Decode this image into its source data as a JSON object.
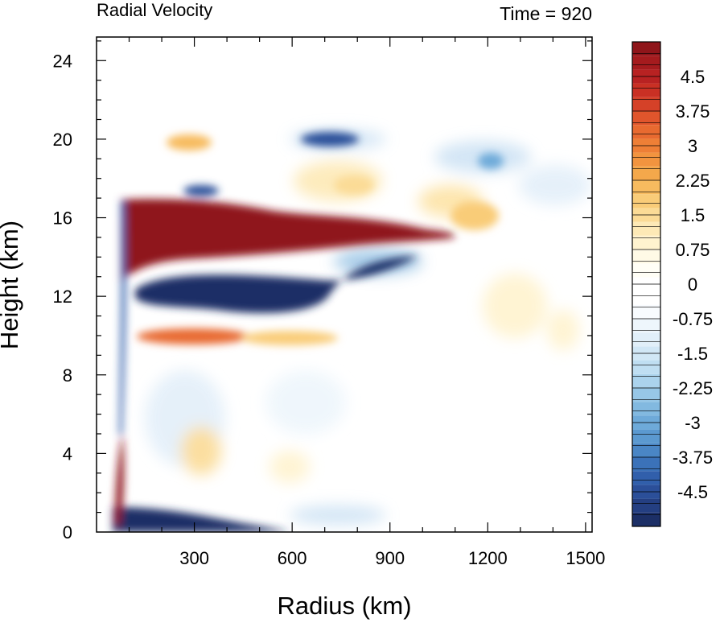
{
  "chart_data": {
    "type": "heatmap",
    "title_left": "Radial Velocity",
    "title_right": "Time = 920",
    "xlabel": "Radius (km)",
    "ylabel": "Height (km)",
    "xlim": [
      0,
      1520
    ],
    "ylim": [
      0,
      25.2
    ],
    "x_ticks": [
      300,
      600,
      900,
      1200,
      1500
    ],
    "y_ticks": [
      0,
      4,
      8,
      12,
      16,
      20,
      24
    ],
    "x_tick_labels": [
      "300",
      "600",
      "900",
      "1200",
      "1500"
    ],
    "y_tick_labels": [
      "0",
      "4",
      "8",
      "12",
      "16",
      "20",
      "24"
    ],
    "colorbar": {
      "levels": [
        -5.25,
        -5.0,
        -4.75,
        -4.5,
        -4.25,
        -4.0,
        -3.75,
        -3.5,
        -3.25,
        -3.0,
        -2.75,
        -2.5,
        -2.25,
        -2.0,
        -1.75,
        -1.5,
        -1.25,
        -1.0,
        -0.75,
        -0.5,
        -0.25,
        0.0,
        0.25,
        0.5,
        0.75,
        1.0,
        1.25,
        1.5,
        1.75,
        2.0,
        2.25,
        2.5,
        2.75,
        3.0,
        3.25,
        3.5,
        3.75,
        4.0,
        4.25,
        4.5,
        4.75,
        5.0,
        5.25
      ],
      "labels": [
        "4.5",
        "3.75",
        "3",
        "2.25",
        "1.5",
        "0.75",
        "0",
        "-0.75",
        "-1.5",
        "-2.25",
        "-3",
        "-3.75",
        "-4.5"
      ],
      "label_values": [
        4.5,
        3.75,
        3.0,
        2.25,
        1.5,
        0.75,
        0,
        -0.75,
        -1.5,
        -2.25,
        -3.0,
        -3.75,
        -4.5
      ],
      "colors": [
        "#1c2f66",
        "#243f82",
        "#2b4f99",
        "#315fab",
        "#3b72b9",
        "#4a86c5",
        "#5b99d0",
        "#6eaad9",
        "#82b9e0",
        "#97c7e7",
        "#abd3ed",
        "#bfdef2",
        "#d1e7f6",
        "#e1eff9",
        "#eef6fc",
        "#f8fbfe",
        "#ffffff",
        "#ffffff",
        "#fffef6",
        "#fffae6",
        "#fff3cf",
        "#fde9b6",
        "#fbdb96",
        "#f9cc78",
        "#f7bb5f",
        "#f4a84b",
        "#f2943f",
        "#ee7f36",
        "#e86a30",
        "#e0552c",
        "#d54128",
        "#c93024",
        "#b82222",
        "#a51b1e",
        "#8f151a"
      ]
    },
    "features": [
      {
        "label": "outflow layer",
        "sign": "positive",
        "radius_range_km": [
          60,
          1100
        ],
        "height_range_km": [
          13.5,
          17.3
        ],
        "peak": 5.25
      },
      {
        "label": "upper inflow",
        "sign": "negative",
        "radius_range_km": [
          80,
          600
        ],
        "height_range_km": [
          10.5,
          13.5
        ],
        "peak": -5.25
      },
      {
        "label": "mid-level outflow",
        "sign": "positive",
        "radius_range_km": [
          120,
          450
        ],
        "height_range_km": [
          9,
          10.5
        ],
        "peak": 3.0
      },
      {
        "label": "boundary-layer inflow",
        "sign": "negative",
        "radius_range_km": [
          40,
          450
        ],
        "height_range_km": [
          0,
          1.5
        ],
        "peak": -5.25
      },
      {
        "label": "near-center low-level outflow",
        "sign": "positive",
        "radius_range_km": [
          50,
          75
        ],
        "height_range_km": [
          0.5,
          5
        ],
        "peak": 5.25
      },
      {
        "label": "upper-level inflow band",
        "sign": "negative",
        "radius_range_km": [
          500,
          1400
        ],
        "height_range_km": [
          19,
          21
        ],
        "peak": -4.5
      }
    ]
  }
}
